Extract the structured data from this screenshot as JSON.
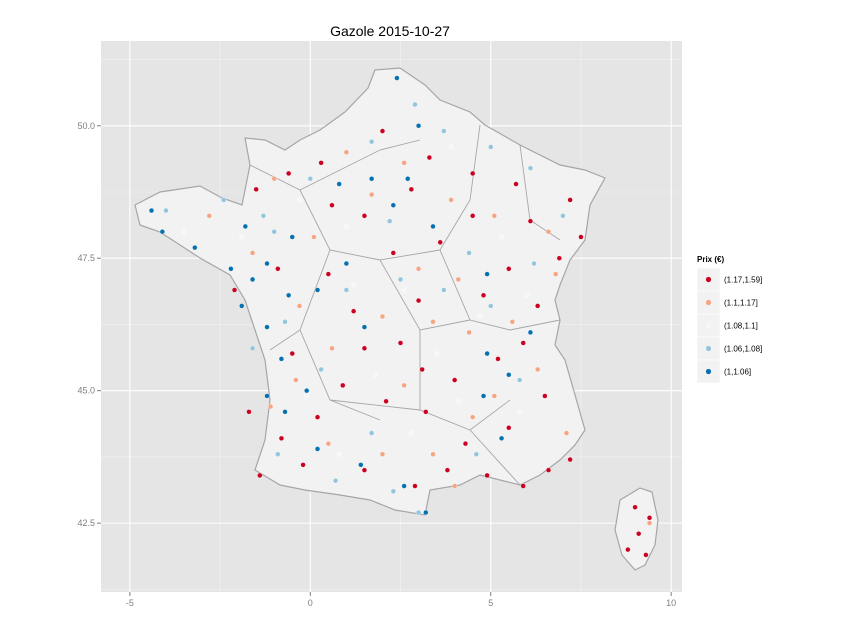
{
  "chart_data": {
    "type": "scatter",
    "title": "Gazole 2015-10-27",
    "xlabel": "",
    "ylabel": "",
    "xlim": [
      -5.8,
      10.3
    ],
    "ylim": [
      41.2,
      51.6
    ],
    "x_ticks": [
      -5,
      0,
      5,
      10
    ],
    "x_tick_labels": [
      "-5",
      "0",
      "5",
      "10"
    ],
    "y_ticks": [
      42.5,
      45.0,
      47.5,
      50.0
    ],
    "y_tick_labels": [
      "42.5",
      "45.0",
      "47.5",
      "50.0"
    ],
    "grid": true,
    "background": "#e5e5e5",
    "legend": {
      "title": "Prix (€)",
      "placement": "right",
      "entries": [
        {
          "label": "(1.17,1.59]",
          "color": "#ca0020"
        },
        {
          "label": "(1.1,1.17]",
          "color": "#f4a582"
        },
        {
          "label": "(1.08,1.1]",
          "color": "#f7f7f7"
        },
        {
          "label": "(1.06,1.08]",
          "color": "#92c5de"
        },
        {
          "label": "(1,1.06]",
          "color": "#0571b0"
        }
      ]
    },
    "series": [
      {
        "name": "(1.17,1.59]",
        "color": "#ca0020",
        "points": [
          [
            -1.5,
            48.8
          ],
          [
            2.0,
            49.9
          ],
          [
            3.3,
            49.4
          ],
          [
            4.5,
            49.1
          ],
          [
            5.7,
            48.9
          ],
          [
            7.2,
            48.6
          ],
          [
            7.5,
            47.9
          ],
          [
            6.9,
            47.5
          ],
          [
            6.3,
            46.6
          ],
          [
            5.9,
            45.9
          ],
          [
            5.2,
            45.6
          ],
          [
            4.0,
            45.2
          ],
          [
            3.1,
            45.4
          ],
          [
            2.5,
            45.9
          ],
          [
            1.5,
            45.8
          ],
          [
            0.9,
            45.1
          ],
          [
            0.2,
            44.5
          ],
          [
            -0.8,
            44.1
          ],
          [
            -1.4,
            43.4
          ],
          [
            -0.2,
            43.6
          ],
          [
            1.5,
            43.5
          ],
          [
            2.9,
            43.2
          ],
          [
            3.8,
            43.5
          ],
          [
            4.9,
            43.4
          ],
          [
            5.9,
            43.2
          ],
          [
            6.6,
            43.5
          ],
          [
            7.2,
            43.7
          ],
          [
            9.0,
            42.8
          ],
          [
            9.1,
            42.3
          ],
          [
            9.3,
            41.9
          ],
          [
            9.4,
            42.6
          ],
          [
            8.8,
            42.0
          ],
          [
            5.5,
            44.3
          ],
          [
            4.3,
            44.0
          ],
          [
            2.1,
            44.8
          ],
          [
            1.2,
            46.5
          ],
          [
            0.5,
            47.2
          ],
          [
            3.0,
            46.7
          ],
          [
            4.8,
            46.8
          ],
          [
            5.5,
            47.3
          ],
          [
            3.6,
            47.8
          ],
          [
            2.3,
            47.6
          ],
          [
            1.5,
            48.3
          ],
          [
            0.6,
            48.5
          ],
          [
            -0.9,
            47.3
          ],
          [
            -2.1,
            46.9
          ],
          [
            -1.7,
            44.6
          ],
          [
            -0.5,
            45.7
          ],
          [
            6.5,
            44.9
          ],
          [
            3.2,
            44.6
          ],
          [
            4.5,
            48.3
          ],
          [
            6.1,
            48.2
          ],
          [
            2.8,
            48.8
          ],
          [
            0.3,
            49.3
          ],
          [
            -0.6,
            49.1
          ]
        ]
      },
      {
        "name": "(1.1,1.17]",
        "color": "#f4a582",
        "points": [
          [
            -2.8,
            48.3
          ],
          [
            -1.0,
            49.0
          ],
          [
            1.0,
            49.5
          ],
          [
            2.6,
            49.3
          ],
          [
            3.9,
            48.6
          ],
          [
            5.1,
            48.3
          ],
          [
            6.6,
            48.0
          ],
          [
            6.8,
            47.2
          ],
          [
            5.6,
            46.3
          ],
          [
            4.4,
            46.1
          ],
          [
            3.4,
            46.3
          ],
          [
            2.0,
            46.4
          ],
          [
            0.6,
            45.8
          ],
          [
            -0.4,
            45.2
          ],
          [
            -1.1,
            44.7
          ],
          [
            0.5,
            44.0
          ],
          [
            2.0,
            43.8
          ],
          [
            3.4,
            43.8
          ],
          [
            4.5,
            44.5
          ],
          [
            5.1,
            44.9
          ],
          [
            6.3,
            45.4
          ],
          [
            7.1,
            44.2
          ],
          [
            9.4,
            42.5
          ],
          [
            1.7,
            48.7
          ],
          [
            3.0,
            47.3
          ],
          [
            4.1,
            47.1
          ],
          [
            -0.3,
            46.6
          ],
          [
            -1.6,
            47.6
          ],
          [
            0.1,
            47.9
          ],
          [
            2.6,
            45.1
          ],
          [
            4.0,
            43.2
          ]
        ]
      },
      {
        "name": "(1.08,1.1]",
        "color": "#f7f7f7",
        "points": [
          [
            -3.5,
            48.0
          ],
          [
            -0.3,
            48.6
          ],
          [
            1.2,
            47.0
          ],
          [
            2.6,
            46.9
          ],
          [
            4.7,
            46.4
          ],
          [
            5.3,
            47.9
          ],
          [
            3.5,
            45.7
          ],
          [
            1.8,
            45.3
          ],
          [
            -0.1,
            44.9
          ],
          [
            2.8,
            44.2
          ],
          [
            4.1,
            44.8
          ],
          [
            6.0,
            46.8
          ],
          [
            1.0,
            48.1
          ],
          [
            -1.9,
            47.9
          ],
          [
            3.9,
            49.6
          ],
          [
            5.8,
            44.6
          ],
          [
            0.8,
            43.8
          ]
        ]
      },
      {
        "name": "(1.06,1.08]",
        "color": "#92c5de",
        "points": [
          [
            -4.0,
            48.4
          ],
          [
            -2.4,
            48.6
          ],
          [
            -1.3,
            48.3
          ],
          [
            0.0,
            49.0
          ],
          [
            1.7,
            49.7
          ],
          [
            2.9,
            50.4
          ],
          [
            3.7,
            49.9
          ],
          [
            5.0,
            49.6
          ],
          [
            6.1,
            49.2
          ],
          [
            4.4,
            47.6
          ],
          [
            2.5,
            47.1
          ],
          [
            1.0,
            46.9
          ],
          [
            -0.7,
            46.3
          ],
          [
            -1.6,
            45.8
          ],
          [
            -0.9,
            43.8
          ],
          [
            0.7,
            43.3
          ],
          [
            2.3,
            43.1
          ],
          [
            3.0,
            42.7
          ],
          [
            4.6,
            43.8
          ],
          [
            5.8,
            45.2
          ],
          [
            5.0,
            46.6
          ],
          [
            3.7,
            46.9
          ],
          [
            1.7,
            44.2
          ],
          [
            0.3,
            45.4
          ],
          [
            -1.0,
            48.0
          ],
          [
            2.2,
            48.2
          ],
          [
            7.0,
            48.3
          ],
          [
            6.2,
            47.4
          ]
        ]
      },
      {
        "name": "(1,1.06]",
        "color": "#0571b0",
        "points": [
          [
            -4.4,
            48.4
          ],
          [
            -4.1,
            48.0
          ],
          [
            -3.2,
            47.7
          ],
          [
            -2.2,
            47.3
          ],
          [
            -1.9,
            46.6
          ],
          [
            -1.2,
            46.2
          ],
          [
            -0.6,
            46.8
          ],
          [
            0.2,
            46.9
          ],
          [
            1.0,
            47.4
          ],
          [
            2.3,
            48.5
          ],
          [
            3.0,
            50.0
          ],
          [
            2.4,
            50.9
          ],
          [
            1.7,
            49.0
          ],
          [
            0.8,
            48.9
          ],
          [
            -0.5,
            47.9
          ],
          [
            -1.2,
            47.4
          ],
          [
            -1.6,
            47.1
          ],
          [
            -0.8,
            45.6
          ],
          [
            -1.2,
            44.9
          ],
          [
            -0.7,
            44.6
          ],
          [
            0.2,
            43.9
          ],
          [
            1.4,
            43.6
          ],
          [
            2.6,
            43.2
          ],
          [
            3.2,
            42.7
          ],
          [
            4.8,
            44.9
          ],
          [
            4.9,
            45.7
          ],
          [
            5.5,
            45.3
          ],
          [
            6.1,
            46.1
          ],
          [
            4.9,
            47.2
          ],
          [
            2.7,
            49.0
          ],
          [
            3.4,
            48.1
          ],
          [
            5.3,
            44.1
          ],
          [
            1.5,
            46.2
          ],
          [
            -0.1,
            45.0
          ],
          [
            -1.8,
            48.1
          ]
        ]
      }
    ]
  }
}
